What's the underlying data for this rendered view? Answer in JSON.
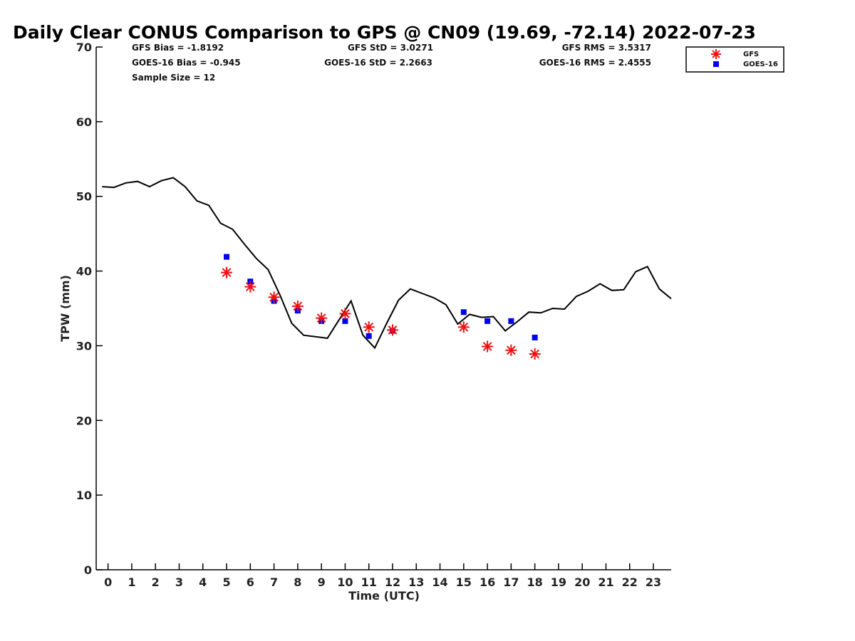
{
  "title": "Daily Clear CONUS Comparison to GPS @ CN09 (19.69, -72.14) 2022-07-23",
  "stats": {
    "gfs_bias": "GFS Bias = -1.8192",
    "gfs_std": "GFS StD = 3.0271",
    "gfs_rms": "GFS RMS = 3.5317",
    "goes_bias": "GOES-16 Bias = -0.945",
    "goes_std": "GOES-16 StD = 2.2663",
    "goes_rms": "GOES-16 RMS = 2.4555",
    "sample_size": "Sample Size = 12"
  },
  "legend": {
    "gfs": "GFS",
    "goes": "GOES-16"
  },
  "chart_data": {
    "type": "line",
    "xlabel": "Time (UTC)",
    "ylabel": "TPW (mm)",
    "xlim": [
      -0.5,
      23.75
    ],
    "ylim": [
      0,
      70
    ],
    "x_ticks": [
      0,
      1,
      2,
      3,
      4,
      5,
      6,
      7,
      8,
      9,
      10,
      11,
      12,
      13,
      14,
      15,
      16,
      17,
      18,
      19,
      20,
      21,
      22,
      23
    ],
    "y_ticks": [
      0,
      10,
      20,
      30,
      40,
      50,
      60,
      70
    ],
    "grid": false,
    "legend_position": "top-right",
    "colors": {
      "gps": "#000000",
      "gfs": "#ee1111",
      "goes": "#0000ee"
    },
    "series": [
      {
        "x": [
          -0.25,
          0.25,
          0.75,
          1.25,
          1.75,
          2.25,
          2.75,
          3.25,
          3.75,
          4.25,
          4.75,
          5.25,
          5.75,
          6.25,
          6.75,
          7.25,
          7.75,
          8.25,
          8.75,
          9.25,
          9.75,
          10.25,
          10.75,
          11.25,
          11.75,
          12.25,
          12.75,
          13.25,
          13.75,
          14.25,
          14.75,
          15.25,
          15.75,
          16.25,
          16.75,
          17.25,
          17.75,
          18.25,
          18.75,
          19.25,
          19.75,
          20.25,
          20.75,
          21.25,
          21.75,
          22.25,
          22.75,
          23.25,
          23.75
        ],
        "values": [
          51.3,
          51.2,
          51.8,
          52.0,
          51.3,
          52.1,
          52.5,
          51.3,
          49.4,
          48.8,
          46.4,
          45.6,
          43.6,
          41.7,
          40.2,
          36.8,
          33.0,
          31.4,
          31.2,
          31.0,
          33.5,
          36.0,
          31.4,
          29.7,
          33.0,
          36.1,
          37.6,
          37.0,
          36.4,
          35.5,
          32.9,
          34.2,
          33.8,
          33.9,
          32.0,
          33.2,
          34.5,
          34.4,
          35.0,
          34.9,
          36.6,
          37.3,
          38.3,
          37.4,
          37.5,
          39.9,
          40.6,
          37.6,
          36.3
        ]
      },
      {
        "name": "GFS",
        "x": [
          5,
          6,
          7,
          8,
          9,
          10,
          11,
          12,
          15,
          16,
          17,
          18
        ],
        "values": [
          39.8,
          37.9,
          36.5,
          35.3,
          33.7,
          34.3,
          32.5,
          32.1,
          32.5,
          29.9,
          29.4,
          28.9
        ]
      },
      {
        "name": "GOES-16",
        "x": [
          5,
          6,
          7,
          8,
          9,
          10,
          11,
          12,
          15,
          16,
          17,
          18
        ],
        "values": [
          41.9,
          38.6,
          36.0,
          34.7,
          33.3,
          33.3,
          31.3,
          32.0,
          34.5,
          33.3,
          33.3,
          31.1
        ]
      }
    ]
  }
}
